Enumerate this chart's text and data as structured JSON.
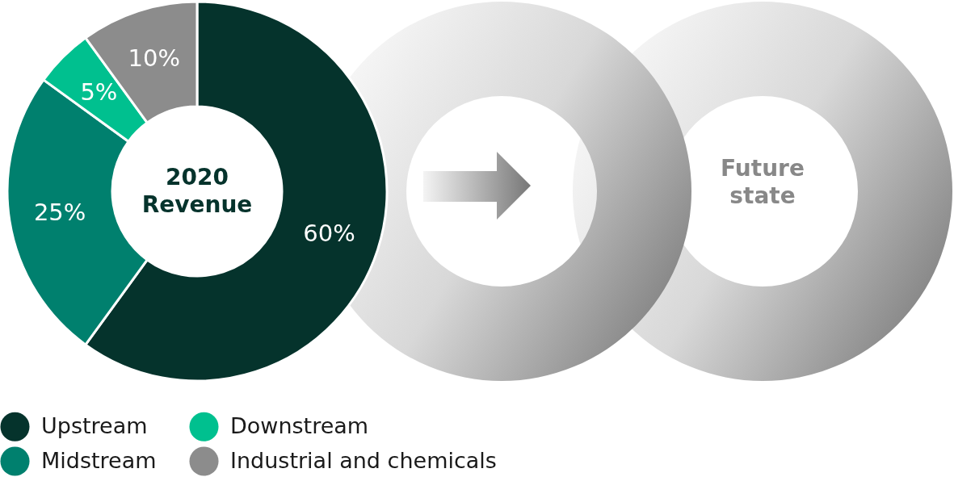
{
  "chart_data": {
    "type": "donut",
    "title": "2020 Revenue",
    "categories": [
      "Upstream",
      "Midstream",
      "Downstream",
      "Industrial and chemicals"
    ],
    "values": [
      60,
      25,
      5,
      10
    ],
    "colors": [
      "#05332c",
      "#00806e",
      "#00c08f",
      "#8c8c8c"
    ],
    "value_labels": [
      "60%",
      "25%",
      "5%",
      "10%"
    ],
    "legend": "bottom",
    "annotations": [
      "Future state"
    ]
  }
}
